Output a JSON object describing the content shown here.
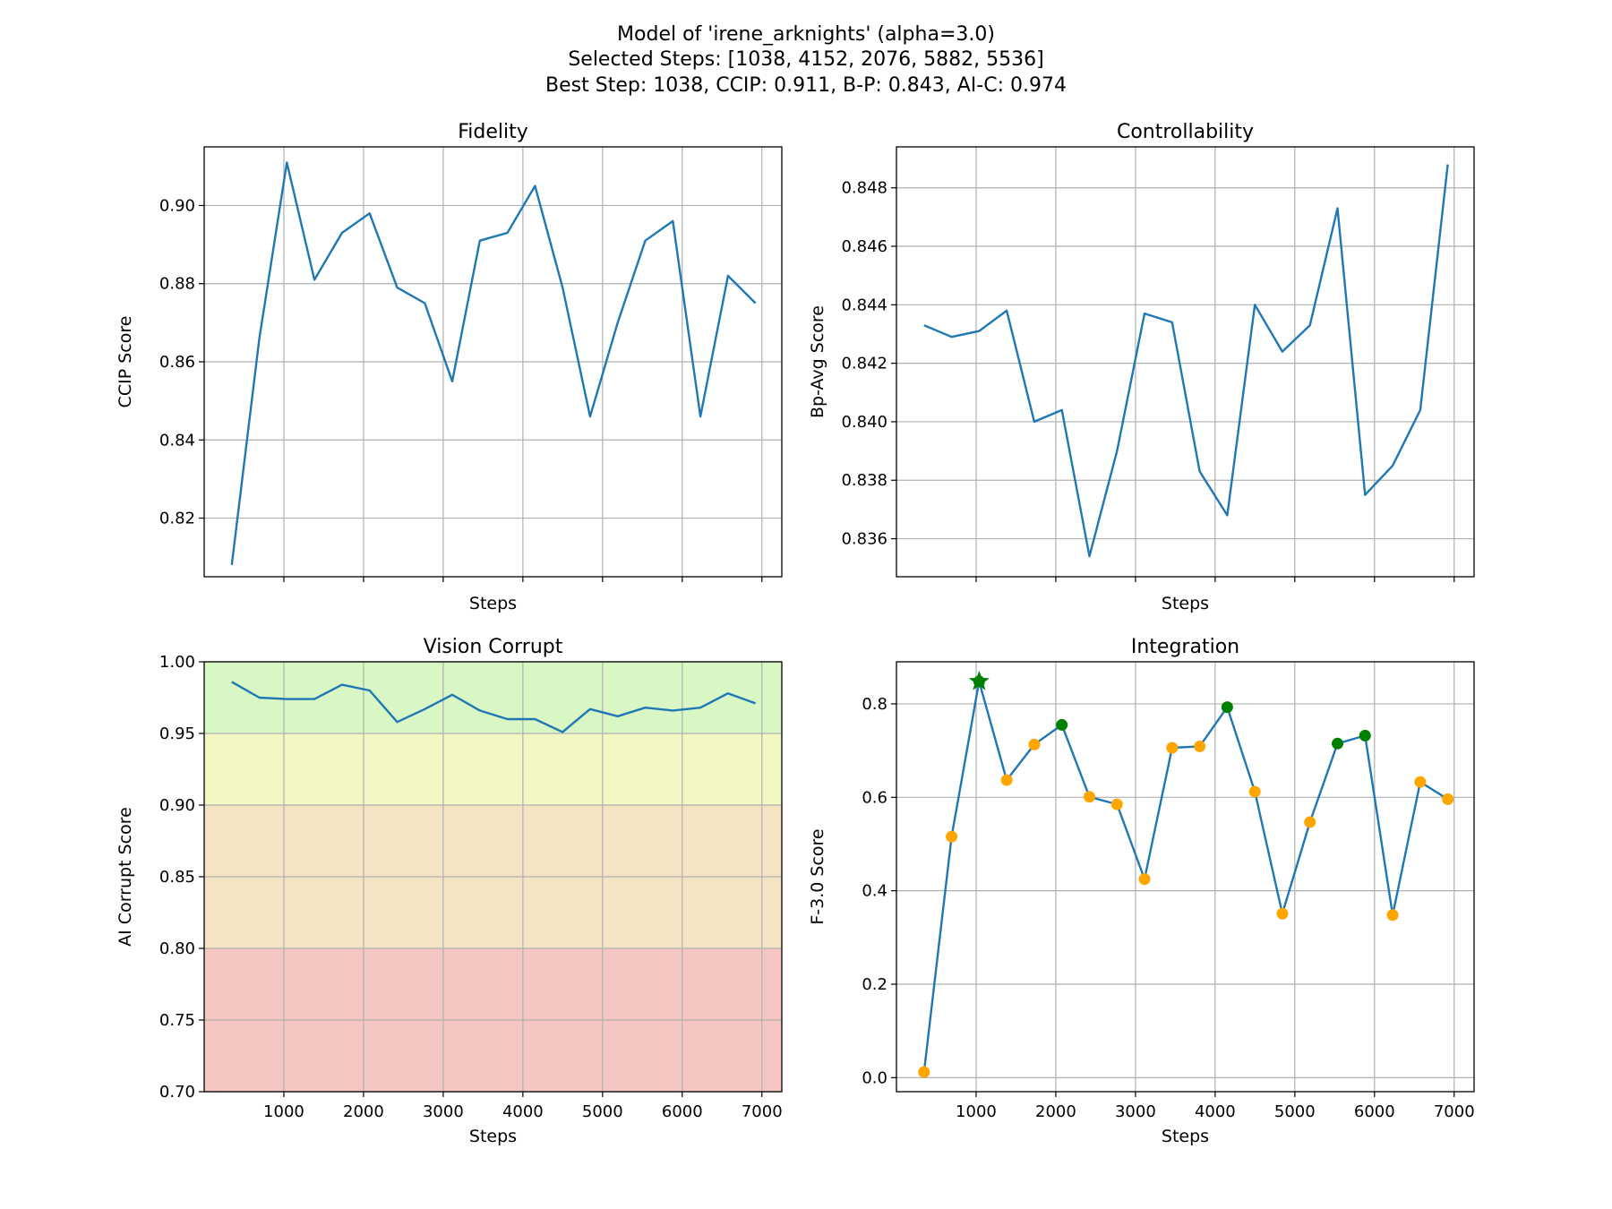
{
  "suptitle": {
    "line1": "Model of 'irene_arknights' (alpha=3.0)",
    "line2": "Selected Steps: [1038, 4152, 2076, 5882, 5536]",
    "line3": "Best Step: 1038, CCIP: 0.911, B-P: 0.843, AI-C: 0.974"
  },
  "colors": {
    "line": "#1f77b4",
    "grid": "#b0b0b0",
    "point_default": "orange",
    "point_selected": "green",
    "best_marker": "green",
    "band_excellent": "#d9f7c4",
    "band_good": "#f3f7c2",
    "band_fair": "#f5e4c3",
    "band_poor": "#f5c6c2"
  },
  "chart_data": [
    {
      "id": "fidelity",
      "type": "line",
      "title": "Fidelity",
      "xlabel": "Steps",
      "ylabel": "CCIP Score",
      "xlim": [
        0,
        7250
      ],
      "ylim": [
        0.805,
        0.915
      ],
      "xticks": [
        1000,
        2000,
        3000,
        4000,
        5000,
        6000,
        7000
      ],
      "show_xtick_labels": false,
      "yticks": [
        0.82,
        0.84,
        0.86,
        0.88,
        0.9
      ],
      "ytick_labels": [
        "0.82",
        "0.84",
        "0.86",
        "0.88",
        "0.90"
      ],
      "grid": true,
      "x": [
        346,
        692,
        1038,
        1384,
        1730,
        2076,
        2422,
        2768,
        3114,
        3460,
        3806,
        4152,
        4498,
        4844,
        5190,
        5536,
        5882,
        6228,
        6574,
        6920
      ],
      "y": [
        0.808,
        0.866,
        0.911,
        0.881,
        0.893,
        0.898,
        0.879,
        0.875,
        0.855,
        0.891,
        0.893,
        0.905,
        0.879,
        0.846,
        0.87,
        0.891,
        0.896,
        0.846,
        0.882,
        0.875
      ]
    },
    {
      "id": "controllability",
      "type": "line",
      "title": "Controllability",
      "xlabel": "Steps",
      "ylabel": "Bp-Avg Score",
      "xlim": [
        0,
        7250
      ],
      "ylim": [
        0.8347,
        0.8494
      ],
      "xticks": [
        1000,
        2000,
        3000,
        4000,
        5000,
        6000,
        7000
      ],
      "show_xtick_labels": false,
      "yticks": [
        0.836,
        0.838,
        0.84,
        0.842,
        0.844,
        0.846,
        0.848
      ],
      "ytick_labels": [
        "0.836",
        "0.838",
        "0.840",
        "0.842",
        "0.844",
        "0.846",
        "0.848"
      ],
      "grid": true,
      "x": [
        346,
        692,
        1038,
        1384,
        1730,
        2076,
        2422,
        2768,
        3114,
        3460,
        3806,
        4152,
        4498,
        4844,
        5190,
        5536,
        5882,
        6228,
        6574,
        6920
      ],
      "y": [
        0.8433,
        0.8429,
        0.8431,
        0.8438,
        0.84,
        0.8404,
        0.8354,
        0.839,
        0.8437,
        0.8434,
        0.8383,
        0.8368,
        0.844,
        0.8424,
        0.8433,
        0.8473,
        0.8375,
        0.8385,
        0.8404,
        0.8488
      ]
    },
    {
      "id": "vision-corrupt",
      "type": "line",
      "title": "Vision Corrupt",
      "xlabel": "Steps",
      "ylabel": "AI Corrupt Score",
      "xlim": [
        0,
        7250
      ],
      "ylim": [
        0.7,
        1.0
      ],
      "xticks": [
        1000,
        2000,
        3000,
        4000,
        5000,
        6000,
        7000
      ],
      "xtick_labels": [
        "1000",
        "2000",
        "3000",
        "4000",
        "5000",
        "6000",
        "7000"
      ],
      "show_xtick_labels": true,
      "yticks": [
        0.7,
        0.75,
        0.8,
        0.85,
        0.9,
        0.95,
        1.0
      ],
      "ytick_labels": [
        "0.70",
        "0.75",
        "0.80",
        "0.85",
        "0.90",
        "0.95",
        "1.00"
      ],
      "grid": true,
      "bands": [
        {
          "from": 0.7,
          "to": 0.8,
          "color": "#f5c6c2"
        },
        {
          "from": 0.8,
          "to": 0.9,
          "color": "#f5e4c3"
        },
        {
          "from": 0.9,
          "to": 0.95,
          "color": "#f3f7c2"
        },
        {
          "from": 0.95,
          "to": 1.0,
          "color": "#d9f7c4"
        }
      ],
      "x": [
        346,
        692,
        1038,
        1384,
        1730,
        2076,
        2422,
        2768,
        3114,
        3460,
        3806,
        4152,
        4498,
        4844,
        5190,
        5536,
        5882,
        6228,
        6574,
        6920
      ],
      "y": [
        0.986,
        0.975,
        0.974,
        0.974,
        0.984,
        0.98,
        0.958,
        0.967,
        0.977,
        0.966,
        0.96,
        0.96,
        0.951,
        0.967,
        0.962,
        0.968,
        0.966,
        0.968,
        0.978,
        0.971
      ]
    },
    {
      "id": "integration",
      "type": "line",
      "title": "Integration",
      "xlabel": "Steps",
      "ylabel": "F-3.0 Score",
      "xlim": [
        0,
        7250
      ],
      "ylim": [
        -0.03,
        0.89
      ],
      "xticks": [
        1000,
        2000,
        3000,
        4000,
        5000,
        6000,
        7000
      ],
      "xtick_labels": [
        "1000",
        "2000",
        "3000",
        "4000",
        "5000",
        "6000",
        "7000"
      ],
      "show_xtick_labels": true,
      "yticks": [
        0.0,
        0.2,
        0.4,
        0.6,
        0.8
      ],
      "ytick_labels": [
        "0.0",
        "0.2",
        "0.4",
        "0.6",
        "0.8"
      ],
      "grid": true,
      "x": [
        346,
        692,
        1038,
        1384,
        1730,
        2076,
        2422,
        2768,
        3114,
        3460,
        3806,
        4152,
        4498,
        4844,
        5190,
        5536,
        5882,
        6228,
        6574,
        6920
      ],
      "y": [
        0.012,
        0.516,
        0.848,
        0.637,
        0.713,
        0.755,
        0.601,
        0.585,
        0.425,
        0.706,
        0.709,
        0.793,
        0.612,
        0.351,
        0.547,
        0.715,
        0.732,
        0.348,
        0.633,
        0.596
      ],
      "selected_steps": [
        1038,
        4152,
        2076,
        5882,
        5536
      ],
      "best_step": 1038
    }
  ]
}
